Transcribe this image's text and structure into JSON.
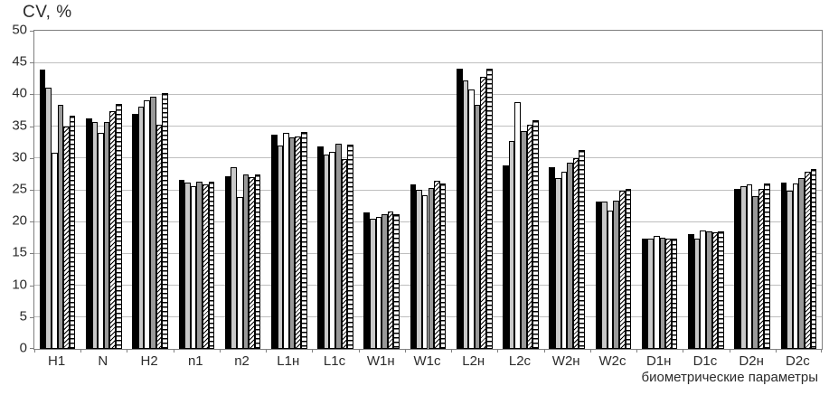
{
  "chart_data": {
    "type": "bar",
    "title": "CV, %",
    "xlabel": "биометрические параметры",
    "ylabel": "",
    "ylim": [
      0,
      50
    ],
    "ytick_step": 5,
    "yticks": [
      0,
      5,
      10,
      15,
      20,
      25,
      30,
      35,
      40,
      45,
      50
    ],
    "grid": true,
    "legend": "none",
    "categories": [
      "H1",
      "N",
      "H2",
      "n1",
      "n2",
      "L1н",
      "L1с",
      "W1н",
      "W1с",
      "L2н",
      "L2с",
      "W2н",
      "W2с",
      "D1н",
      "D1с",
      "D2н",
      "D2с"
    ],
    "series": [
      {
        "name": "series-1-solid-black",
        "pattern": "solid-black",
        "values": [
          43.9,
          36.2,
          37.0,
          26.6,
          27.1,
          33.7,
          31.8,
          21.4,
          25.8,
          44.0,
          28.8,
          28.6,
          23.2,
          17.4,
          18.1,
          25.1,
          26.1
        ]
      },
      {
        "name": "series-2-light-gray",
        "pattern": "light-gray",
        "values": [
          41.0,
          35.7,
          38.0,
          26.1,
          28.6,
          31.9,
          30.5,
          20.5,
          25.0,
          42.2,
          32.6,
          26.9,
          23.2,
          17.4,
          17.3,
          25.6,
          24.9
        ]
      },
      {
        "name": "series-3-white",
        "pattern": "white",
        "values": [
          30.8,
          34.0,
          39.0,
          25.5,
          23.8,
          34.0,
          31.0,
          20.8,
          24.2,
          40.7,
          38.8,
          27.9,
          21.7,
          17.7,
          18.6,
          25.9,
          26.0
        ]
      },
      {
        "name": "series-4-dark-gray",
        "pattern": "dark-gray",
        "values": [
          38.4,
          35.6,
          39.6,
          26.3,
          27.4,
          33.2,
          32.2,
          21.1,
          25.3,
          38.4,
          34.3,
          29.3,
          23.3,
          17.5,
          18.4,
          24.0,
          26.8
        ]
      },
      {
        "name": "series-5-diagonal-hatch",
        "pattern": "diagonal-hatch",
        "values": [
          35.0,
          37.4,
          35.2,
          25.8,
          27.0,
          33.4,
          29.9,
          21.6,
          26.4,
          42.7,
          35.2,
          30.0,
          24.8,
          17.4,
          18.3,
          25.1,
          27.8
        ]
      },
      {
        "name": "series-6-horizontal-hatch",
        "pattern": "horizontal-hatch",
        "values": [
          36.6,
          38.5,
          40.2,
          26.3,
          27.4,
          34.1,
          32.1,
          21.1,
          26.0,
          44.0,
          36.0,
          31.2,
          25.2,
          17.4,
          18.5,
          26.0,
          28.3
        ]
      }
    ],
    "colors": {
      "bar_black": "#000000",
      "bar_light_gray": "#c9c9c9",
      "bar_white": "#ffffff",
      "bar_dark_gray": "#999999",
      "hatch_line": "#000000",
      "bar_border": "#000000",
      "gridline": "#bfbfbf",
      "axis": "#7f7f7f",
      "text": "#2b2b2b"
    }
  }
}
